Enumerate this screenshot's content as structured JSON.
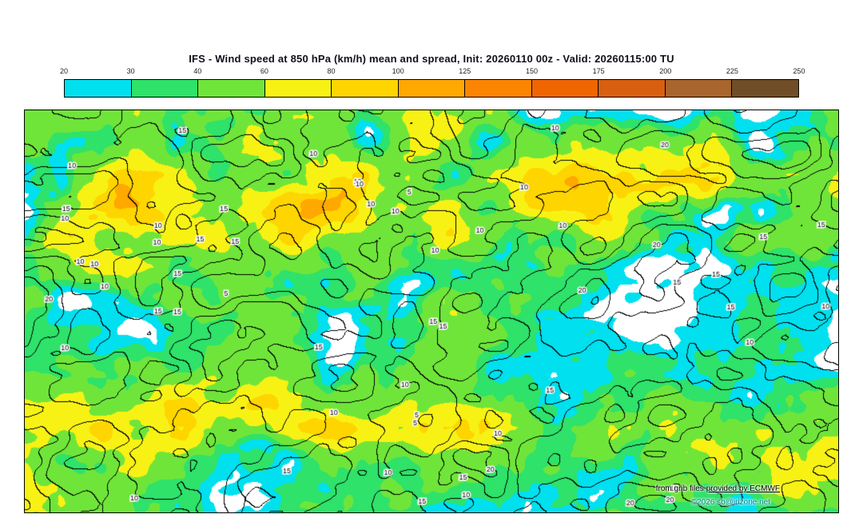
{
  "header": {
    "title": "IFS - Wind speed at 850 hPa (km/h) mean and spread, Init: 20260110 00z - Valid: 20260115:00 TU"
  },
  "colorbar": {
    "ticks": [
      "20",
      "30",
      "40",
      "60",
      "80",
      "100",
      "125",
      "150",
      "175",
      "200",
      "225",
      "250"
    ],
    "segments": [
      {
        "from": 20,
        "to": 30,
        "color": "#00e0ef"
      },
      {
        "from": 30,
        "to": 40,
        "color": "#2ee26a"
      },
      {
        "from": 40,
        "to": 60,
        "color": "#6fe53a"
      },
      {
        "from": 60,
        "to": 80,
        "color": "#f7f214"
      },
      {
        "from": 80,
        "to": 100,
        "color": "#ffd500"
      },
      {
        "from": 100,
        "to": 125,
        "color": "#ffa800"
      },
      {
        "from": 125,
        "to": 150,
        "color": "#fb8500"
      },
      {
        "from": 150,
        "to": 175,
        "color": "#ef6600"
      },
      {
        "from": 175,
        "to": 200,
        "color": "#d85f10"
      },
      {
        "from": 200,
        "to": 225,
        "color": "#a8652e"
      },
      {
        "from": 225,
        "to": 250,
        "color": "#6f4e27"
      }
    ]
  },
  "map": {
    "background_color": "#ffffff",
    "contour_color": "#000000",
    "contour_labels": [
      "5",
      "10",
      "15",
      "20",
      "25"
    ]
  },
  "footer": {
    "attribution_prefix": "from grib files",
    "attribution_link": "provided by ECMWF",
    "copyright": "©2026 sb@irizone.net",
    "copyright_color": "#007f8c"
  },
  "chart_data": {
    "type": "heatmap",
    "title": "IFS - Wind speed at 850 hPa (km/h) mean and spread, Init: 20260110 00z - Valid: 20260115:00 TU",
    "model": "IFS",
    "variable": "Wind speed at 850 hPa (km/h) mean and spread",
    "init": "20260110 00z",
    "valid": "20260115:00 TU",
    "fill_levels": [
      20,
      30,
      40,
      60,
      80,
      100,
      125,
      150,
      175,
      200,
      225,
      250
    ],
    "fill_colors": [
      "#00e0ef",
      "#2ee26a",
      "#6fe53a",
      "#f7f214",
      "#ffd500",
      "#ffa800",
      "#fb8500",
      "#ef6600",
      "#d85f10",
      "#a8652e",
      "#6f4e27"
    ],
    "spread_contour_levels": [
      5,
      10,
      15,
      20,
      25
    ],
    "legend_position": "top",
    "projection": "equirectangular world"
  }
}
